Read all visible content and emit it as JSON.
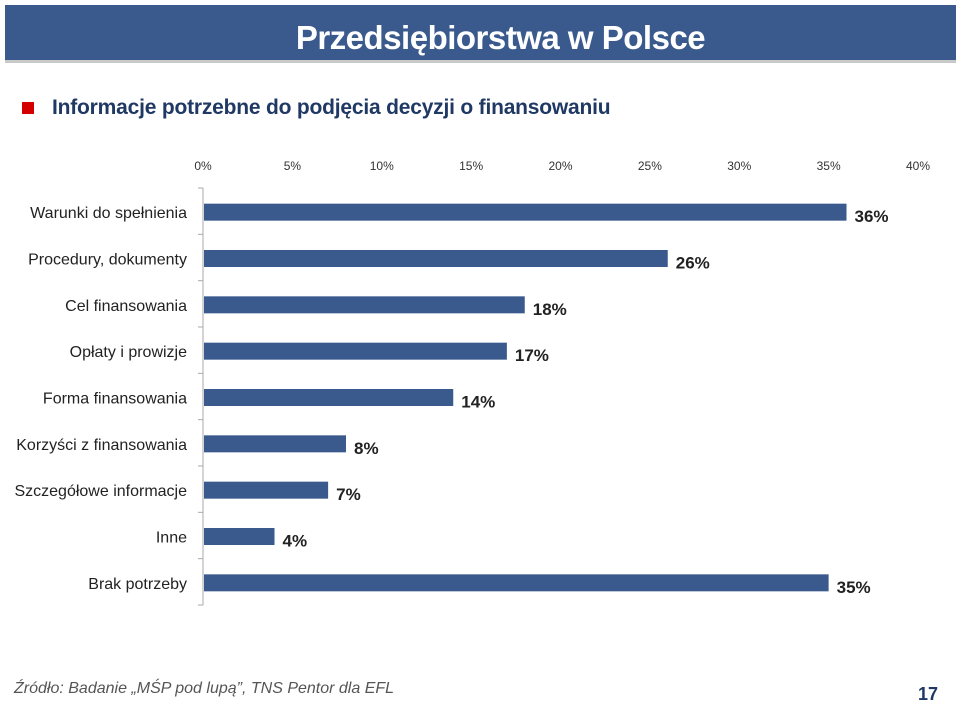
{
  "header": {
    "title": "Przedsiębiorstwa w Polsce"
  },
  "subtitle": "Informacje potrzebne do podjęcia decyzji o finansowaniu",
  "chart_data": {
    "type": "bar",
    "orientation": "horizontal",
    "categories": [
      "Warunki do spełnienia",
      "Procedury, dokumenty",
      "Cel finansowania",
      "Opłaty i prowizje",
      "Forma finansowania",
      "Korzyści z finansowania",
      "Szczegółowe informacje",
      "Inne",
      "Brak potrzeby"
    ],
    "values": [
      36,
      26,
      18,
      17,
      14,
      8,
      7,
      4,
      35
    ],
    "value_labels": [
      "36%",
      "26%",
      "18%",
      "17%",
      "14%",
      "8%",
      "7%",
      "4%",
      "35%"
    ],
    "xlim": [
      0,
      40
    ],
    "xticks": [
      "0%",
      "5%",
      "10%",
      "15%",
      "20%",
      "25%",
      "30%",
      "35%",
      "40%"
    ],
    "xaxis_position": "top",
    "bar_color": "#3a5a8e",
    "grid": false
  },
  "footer": {
    "source": "Źródło: Badanie „MŚP pod lupą”, TNS Pentor dla EFL",
    "page_number": "17"
  }
}
